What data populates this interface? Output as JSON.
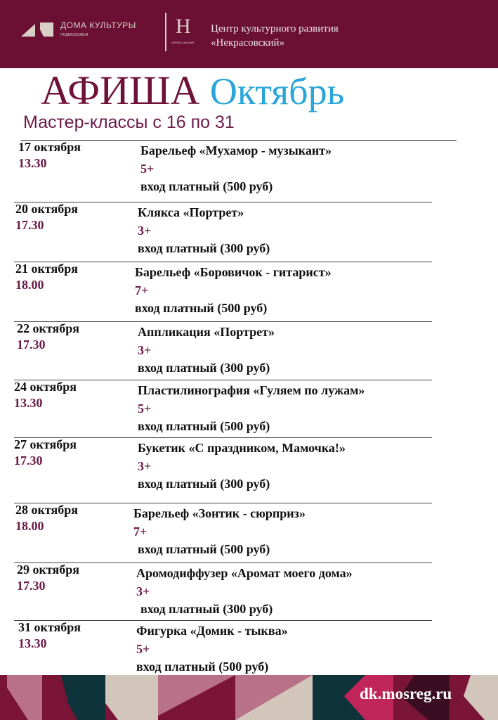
{
  "header": {
    "logo_text": "ДОМА КУЛЬТУРЫ",
    "logo_subtext": "ПОДМОСКОВЬЯ",
    "emblem_text": "НЕКРАСОВСКИЙ",
    "org_line1": "Центр культурного развития",
    "org_line2": "«Некрасовский»",
    "background_color": "#6b0f33"
  },
  "title": {
    "word1": "АФИША",
    "word2": "Октябрь"
  },
  "subtitle": "Мастер-классы с 16 по 31",
  "events": [
    {
      "date": "17 октября",
      "time": "13.30",
      "title": "Барельеф «Мухамор - музыкант»",
      "age": "5+",
      "price": "вход платный (500 руб)"
    },
    {
      "date": "20 октября",
      "time": "17.30",
      "title": "Клякса «Портрет»",
      "age": "3+",
      "price": "вход платный (300 руб)"
    },
    {
      "date": "21 октября",
      "time": "18.00",
      "title": "Барельеф «Боровичок - гитарист»",
      "age": "7+",
      "price": "вход платный (500 руб)"
    },
    {
      "date": "22 октября",
      "time": "17.30",
      "title": "Аппликация «Портрет»",
      "age": "3+",
      "price": "вход платный (300 руб)"
    },
    {
      "date": "24 октября",
      "time": "13.30",
      "title": "Пластилинография  «Гуляем по лужам»",
      "age": "5+",
      "price": "вход платный (500 руб)"
    },
    {
      "date": "27 октября",
      "time": "17.30",
      "title": "Букетик «С праздником, Мамочка!»",
      "age": "3+",
      "price": "вход платный (300 руб)"
    },
    {
      "date": "28 октября",
      "time": "18.00",
      "title": "Барельеф «Зонтик - сюрприз»",
      "age": "7+",
      "price": "вход платный (500 руб)"
    },
    {
      "date": "29 октября",
      "time": "17.30",
      "title": "Аромодиффузер  «Аромат моего дома»",
      "age": "3+",
      "price": "вход платный (300 руб)"
    },
    {
      "date": "31 октября",
      "time": "13.30",
      "title": "Фигурка «Домик - тыква»",
      "age": "5+",
      "price": "вход платный (500 руб)"
    }
  ],
  "footer": {
    "site": "dk.mosreg.ru"
  }
}
